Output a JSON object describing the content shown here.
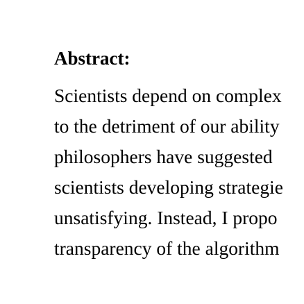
{
  "abstract": {
    "heading": "Abstract:",
    "lines": [
      "Scientists depend on complex",
      "to the detriment of our ability",
      "philosophers have suggested",
      "scientists developing strategie",
      "unsatisfying. Instead, I propo",
      "transparency of the algorithm"
    ]
  }
}
